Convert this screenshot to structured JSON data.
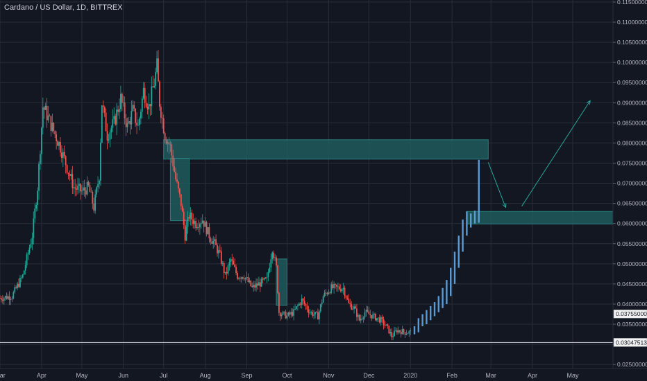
{
  "title": "Cardano / US Dollar, 1D, BITTREX",
  "colors": {
    "background": "#131722",
    "grid": "#2a2e39",
    "up": "#26a69a",
    "down": "#ef5350",
    "projection": "#5b9bd5",
    "zone": "#1f5a5c",
    "zone_border": "#2a7f80",
    "text": "#b2b5be"
  },
  "chart_data": {
    "type": "candlestick",
    "title": "Cardano / US Dollar, 1D, BITTREX",
    "y_range": [
      0.024,
      0.1155
    ],
    "y_ticks": [
      "0.11500000",
      "0.11000000",
      "0.10500000",
      "0.10000000",
      "0.09500000",
      "0.09000000",
      "0.08500000",
      "0.08000000",
      "0.07500000",
      "0.07000000",
      "0.06500000",
      "0.06000000",
      "0.05500000",
      "0.05000000",
      "0.04500000",
      "0.04000000",
      "0.03500000",
      "0.03000000",
      "0.02500000"
    ],
    "x_range": [
      "2019-03-01",
      "2020-05-31"
    ],
    "x_ticks": [
      {
        "date": "2019-03-01",
        "label": "Mar"
      },
      {
        "date": "2019-04-01",
        "label": "Apr"
      },
      {
        "date": "2019-05-01",
        "label": "May"
      },
      {
        "date": "2019-06-01",
        "label": "Jun"
      },
      {
        "date": "2019-07-01",
        "label": "Jul"
      },
      {
        "date": "2019-08-01",
        "label": "Aug"
      },
      {
        "date": "2019-09-01",
        "label": "Sep"
      },
      {
        "date": "2019-10-01",
        "label": "Oct"
      },
      {
        "date": "2019-11-01",
        "label": "Nov"
      },
      {
        "date": "2019-12-01",
        "label": "Dec"
      },
      {
        "date": "2020-01-01",
        "label": "2020"
      },
      {
        "date": "2020-02-01",
        "label": "Feb"
      },
      {
        "date": "2020-03-01",
        "label": "Mar"
      },
      {
        "date": "2020-04-01",
        "label": "Apr"
      },
      {
        "date": "2020-05-01",
        "label": "May"
      }
    ],
    "close_path": [
      [
        "2019-03-01",
        0.0415
      ],
      [
        "2019-03-10",
        0.042
      ],
      [
        "2019-03-18",
        0.047
      ],
      [
        "2019-03-25",
        0.057
      ],
      [
        "2019-03-29",
        0.069
      ],
      [
        "2019-04-02",
        0.089
      ],
      [
        "2019-04-05",
        0.087
      ],
      [
        "2019-04-10",
        0.083
      ],
      [
        "2019-04-15",
        0.079
      ],
      [
        "2019-04-20",
        0.074
      ],
      [
        "2019-04-25",
        0.069
      ],
      [
        "2019-05-01",
        0.068
      ],
      [
        "2019-05-06",
        0.069
      ],
      [
        "2019-05-10",
        0.064
      ],
      [
        "2019-05-14",
        0.072
      ],
      [
        "2019-05-16",
        0.09
      ],
      [
        "2019-05-20",
        0.082
      ],
      [
        "2019-05-25",
        0.085
      ],
      [
        "2019-05-30",
        0.091
      ],
      [
        "2019-06-04",
        0.084
      ],
      [
        "2019-06-08",
        0.088
      ],
      [
        "2019-06-12",
        0.084
      ],
      [
        "2019-06-16",
        0.093
      ],
      [
        "2019-06-20",
        0.089
      ],
      [
        "2019-06-24",
        0.095
      ],
      [
        "2019-06-26",
        0.099
      ],
      [
        "2019-06-28",
        0.09
      ],
      [
        "2019-07-02",
        0.082
      ],
      [
        "2019-07-06",
        0.079
      ],
      [
        "2019-07-10",
        0.071
      ],
      [
        "2019-07-14",
        0.065
      ],
      [
        "2019-07-17",
        0.057
      ],
      [
        "2019-07-20",
        0.062
      ],
      [
        "2019-07-25",
        0.06
      ],
      [
        "2019-07-30",
        0.061
      ],
      [
        "2019-08-04",
        0.057
      ],
      [
        "2019-08-08",
        0.055
      ],
      [
        "2019-08-12",
        0.052
      ],
      [
        "2019-08-16",
        0.047
      ],
      [
        "2019-08-20",
        0.051
      ],
      [
        "2019-08-25",
        0.047
      ],
      [
        "2019-08-30",
        0.047
      ],
      [
        "2019-09-05",
        0.044
      ],
      [
        "2019-09-10",
        0.045
      ],
      [
        "2019-09-16",
        0.046
      ],
      [
        "2019-09-20",
        0.054
      ],
      [
        "2019-09-23",
        0.049
      ],
      [
        "2019-09-25",
        0.038
      ],
      [
        "2019-10-01",
        0.037
      ],
      [
        "2019-10-06",
        0.038
      ],
      [
        "2019-10-12",
        0.041
      ],
      [
        "2019-10-18",
        0.038
      ],
      [
        "2019-10-24",
        0.037
      ],
      [
        "2019-10-28",
        0.042
      ],
      [
        "2019-11-03",
        0.044
      ],
      [
        "2019-11-08",
        0.044
      ],
      [
        "2019-11-12",
        0.044
      ],
      [
        "2019-11-16",
        0.04
      ],
      [
        "2019-11-20",
        0.039
      ],
      [
        "2019-11-24",
        0.036
      ],
      [
        "2019-11-28",
        0.038
      ],
      [
        "2019-12-04",
        0.037
      ],
      [
        "2019-12-10",
        0.036
      ],
      [
        "2019-12-15",
        0.034
      ],
      [
        "2019-12-18",
        0.032
      ],
      [
        "2019-12-22",
        0.0335
      ],
      [
        "2019-12-28",
        0.033
      ],
      [
        "2020-01-01",
        0.033
      ]
    ],
    "projection_bars": [
      [
        "2020-01-04",
        0.0325,
        0.0345
      ],
      [
        "2020-01-07",
        0.033,
        0.0365
      ],
      [
        "2020-01-10",
        0.0345,
        0.0375
      ],
      [
        "2020-01-13",
        0.035,
        0.0385
      ],
      [
        "2020-01-16",
        0.036,
        0.0395
      ],
      [
        "2020-01-19",
        0.037,
        0.0405
      ],
      [
        "2020-01-22",
        0.038,
        0.042
      ],
      [
        "2020-01-25",
        0.039,
        0.044
      ],
      [
        "2020-01-28",
        0.04,
        0.046
      ],
      [
        "2020-01-31",
        0.042,
        0.049
      ],
      [
        "2020-02-03",
        0.045,
        0.053
      ],
      [
        "2020-02-06",
        0.049,
        0.057
      ],
      [
        "2020-02-09",
        0.053,
        0.061
      ],
      [
        "2020-02-12",
        0.057,
        0.063
      ],
      [
        "2020-02-15",
        0.059,
        0.0625
      ],
      [
        "2020-02-18",
        0.06,
        0.0632
      ],
      [
        "2020-02-21",
        0.0602,
        0.0758
      ]
    ],
    "zones": [
      {
        "x0": "2019-07-01",
        "x1": "2020-02-28",
        "y0": 0.076,
        "y1": 0.0808
      },
      {
        "x0": "2020-02-12",
        "x1": "2020-05-31",
        "y0": 0.0599,
        "y1": 0.063
      },
      {
        "x0": "2019-07-06",
        "x1": "2019-07-20",
        "y0": 0.0607,
        "y1": 0.0762
      },
      {
        "x0": "2019-09-23",
        "x1": "2019-10-01",
        "y0": 0.0397,
        "y1": 0.0512
      }
    ],
    "arrows": [
      {
        "from": [
          "2020-02-28",
          0.0752
        ],
        "to": [
          "2020-03-12",
          0.064
        ]
      },
      {
        "from": [
          "2020-03-24",
          0.0643
        ],
        "to": [
          "2020-05-14",
          0.0905
        ]
      }
    ],
    "horizontal_lines": [
      {
        "y": 0.03047513,
        "label": "0.03047513"
      }
    ],
    "price_labels": [
      {
        "y": 0.03755,
        "label": "0.03755000"
      },
      {
        "y": 0.03047513,
        "label": "0.03047513"
      }
    ]
  }
}
